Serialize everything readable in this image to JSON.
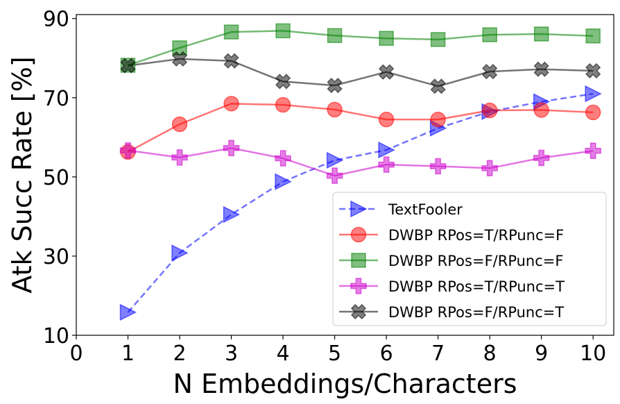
{
  "chart_data": {
    "type": "line",
    "xlabel": "N Embeddings/Characters",
    "ylabel": "Atk Succ Rate [%]",
    "xlim": [
      0,
      10.4
    ],
    "ylim": [
      10,
      91
    ],
    "xticks": [
      0,
      1,
      2,
      3,
      4,
      5,
      6,
      7,
      8,
      9,
      10
    ],
    "yticks": [
      10,
      30,
      50,
      70,
      90
    ],
    "x": [
      1,
      2,
      3,
      4,
      5,
      6,
      7,
      8,
      9,
      10
    ],
    "grid": false,
    "legend_position": "lower-right",
    "series": [
      {
        "name": "TextFooler",
        "color": "#0000ff",
        "marker": "triangle-right",
        "linestyle": "dashed",
        "values": [
          15.8,
          30.8,
          40.5,
          48.8,
          54.2,
          56.8,
          62.3,
          66.5,
          69.0,
          71.0
        ]
      },
      {
        "name": "DWBP RPos=T/RPunc=F",
        "color": "#ff0000",
        "marker": "circle",
        "linestyle": "solid",
        "values": [
          56.3,
          63.3,
          68.5,
          68.2,
          67.0,
          64.5,
          64.5,
          66.8,
          66.9,
          66.3
        ]
      },
      {
        "name": "DWBP RPos=F/RPunc=F",
        "color": "#008000",
        "marker": "square",
        "linestyle": "solid",
        "values": [
          78.2,
          82.6,
          86.6,
          86.9,
          85.7,
          85.0,
          84.7,
          85.9,
          86.1,
          85.6
        ]
      },
      {
        "name": "DWBP RPos=T/RPunc=T",
        "color": "#cc00cc",
        "marker": "plus",
        "linestyle": "solid",
        "values": [
          56.7,
          54.9,
          57.3,
          54.7,
          50.3,
          53.1,
          52.7,
          52.2,
          54.8,
          56.6
        ]
      },
      {
        "name": "DWBP RPos=F/RPunc=T",
        "color": "#000000",
        "marker": "x",
        "linestyle": "solid",
        "values": [
          78.1,
          79.8,
          79.3,
          74.1,
          73.1,
          76.5,
          72.9,
          76.6,
          77.2,
          76.8
        ]
      }
    ]
  }
}
